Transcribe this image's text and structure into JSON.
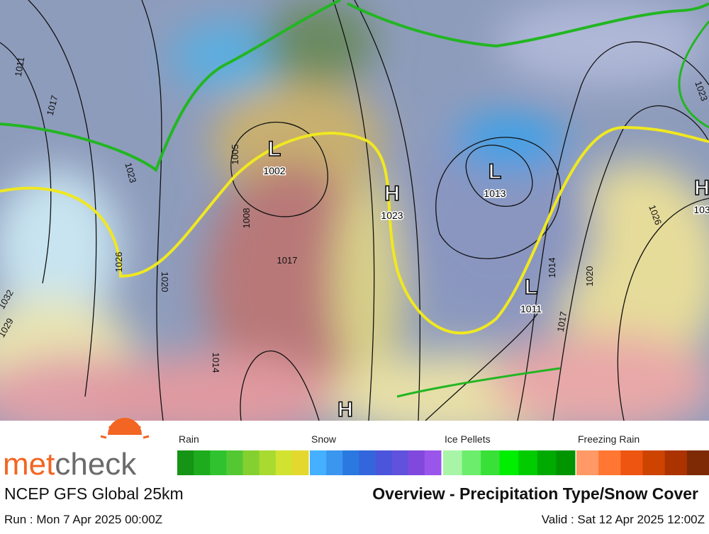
{
  "map": {
    "pressure_centers": [
      {
        "letter": "L",
        "value": "1002"
      },
      {
        "letter": "H",
        "value": "1023"
      },
      {
        "letter": "L",
        "value": "1013"
      },
      {
        "letter": "L",
        "value": "1011"
      },
      {
        "letter": "H",
        "value": "103"
      },
      {
        "letter": "H"
      }
    ],
    "isobar_labels": [
      "1011",
      "1017",
      "1023",
      "1026",
      "1020",
      "1032",
      "1029",
      "1005",
      "1008",
      "1017",
      "1014",
      "1017",
      "1014",
      "1020",
      "1026",
      "1023"
    ]
  },
  "logo": {
    "text": [
      "met",
      "check"
    ]
  },
  "legend": [
    {
      "label": "Rain",
      "colors": [
        "#169416",
        "#1eac1e",
        "#2fc42f",
        "#54c833",
        "#84d030",
        "#a8da30",
        "#d2e230",
        "#e4d82e"
      ]
    },
    {
      "label": "Snow",
      "colors": [
        "#44b0ff",
        "#3a96ee",
        "#2a78e0",
        "#3366dd",
        "#4a55dc",
        "#6052dc",
        "#8048dc",
        "#9a55ea"
      ]
    },
    {
      "label": "Ice Pellets",
      "colors": [
        "#a8f5a8",
        "#6cee6c",
        "#38e038",
        "#00ee00",
        "#00cc00",
        "#00aa00",
        "#009400"
      ]
    },
    {
      "label": "Freezing Rain",
      "colors": [
        "#ff9966",
        "#ff7733",
        "#ee5511",
        "#cc4400",
        "#aa3300",
        "#7e2a05"
      ]
    }
  ],
  "footer": {
    "model": "NCEP GFS Global 25km",
    "title": "Overview - Precipitation Type/Snow Cover",
    "run": "Run : Mon 7 Apr 2025 00:00Z",
    "valid": "Valid : Sat 12 Apr 2025 12:00Z"
  }
}
